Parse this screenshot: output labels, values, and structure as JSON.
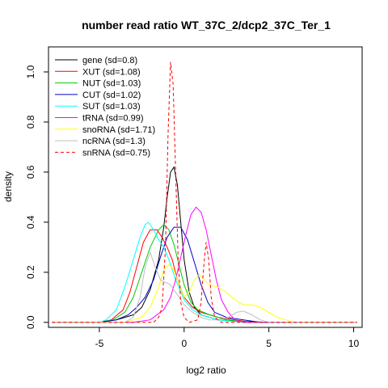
{
  "chart_data": {
    "type": "line",
    "title": "number read ratio WT_37C_2/dcp2_37C_Ter_1",
    "xlabel": "log2 ratio",
    "ylabel": "density",
    "xlim": [
      -8,
      10.5
    ],
    "ylim": [
      -0.02,
      1.1
    ],
    "x_ticks": [
      -5,
      0,
      5,
      10
    ],
    "x_tick_labels": [
      "-5",
      "0",
      "5",
      "10"
    ],
    "y_ticks": [
      0.0,
      0.2,
      0.4,
      0.6,
      0.8,
      1.0
    ],
    "y_tick_labels": [
      "0.0",
      "0.2",
      "0.4",
      "0.6",
      "0.8",
      "1.0"
    ],
    "grid": false,
    "legend_position": "top-left",
    "series": [
      {
        "name": "gene (sd=0.8)",
        "color": "#000000",
        "dash": false,
        "points": [
          [
            -7.8,
            0
          ],
          [
            -5,
            0
          ],
          [
            -4,
            0.01
          ],
          [
            -3,
            0.03
          ],
          [
            -2.5,
            0.06
          ],
          [
            -2,
            0.13
          ],
          [
            -1.5,
            0.25
          ],
          [
            -1.2,
            0.38
          ],
          [
            -1,
            0.5
          ],
          [
            -0.8,
            0.6
          ],
          [
            -0.6,
            0.62
          ],
          [
            -0.4,
            0.55
          ],
          [
            -0.2,
            0.4
          ],
          [
            0,
            0.25
          ],
          [
            0.3,
            0.12
          ],
          [
            0.6,
            0.06
          ],
          [
            1,
            0.03
          ],
          [
            1.5,
            0.02
          ],
          [
            2,
            0.01
          ],
          [
            3,
            0.005
          ],
          [
            5,
            0
          ],
          [
            10.2,
            0
          ]
        ]
      },
      {
        "name": "XUT (sd=1.08)",
        "color": "#ff0000",
        "dash": false,
        "points": [
          [
            -7.8,
            0
          ],
          [
            -5,
            0
          ],
          [
            -4.3,
            0.01
          ],
          [
            -3.6,
            0.05
          ],
          [
            -3.2,
            0.12
          ],
          [
            -2.8,
            0.22
          ],
          [
            -2.4,
            0.32
          ],
          [
            -2,
            0.37
          ],
          [
            -1.6,
            0.37
          ],
          [
            -1.3,
            0.34
          ],
          [
            -1,
            0.3
          ],
          [
            -0.7,
            0.25
          ],
          [
            -0.4,
            0.17
          ],
          [
            0,
            0.1
          ],
          [
            0.5,
            0.06
          ],
          [
            1,
            0.04
          ],
          [
            1.5,
            0.03
          ],
          [
            2,
            0.02
          ],
          [
            3,
            0.01
          ],
          [
            4,
            0
          ],
          [
            10.2,
            0
          ]
        ]
      },
      {
        "name": "NUT (sd=1.03)",
        "color": "#00cc00",
        "dash": false,
        "points": [
          [
            -7.8,
            0
          ],
          [
            -5,
            0
          ],
          [
            -4.2,
            0.01
          ],
          [
            -3.5,
            0.04
          ],
          [
            -3,
            0.1
          ],
          [
            -2.5,
            0.2
          ],
          [
            -2,
            0.3
          ],
          [
            -1.5,
            0.37
          ],
          [
            -1.2,
            0.39
          ],
          [
            -0.9,
            0.37
          ],
          [
            -0.6,
            0.31
          ],
          [
            -0.3,
            0.23
          ],
          [
            0,
            0.15
          ],
          [
            0.4,
            0.08
          ],
          [
            0.8,
            0.05
          ],
          [
            1.5,
            0.03
          ],
          [
            2.5,
            0.01
          ],
          [
            4,
            0
          ],
          [
            10.2,
            0
          ]
        ]
      },
      {
        "name": "CUT (sd=1.02)",
        "color": "#0000cc",
        "dash": false,
        "points": [
          [
            -7.8,
            0
          ],
          [
            -5,
            0
          ],
          [
            -4,
            0.01
          ],
          [
            -3.3,
            0.03
          ],
          [
            -2.8,
            0.06
          ],
          [
            -2.3,
            0.1
          ],
          [
            -1.8,
            0.17
          ],
          [
            -1.4,
            0.26
          ],
          [
            -1,
            0.34
          ],
          [
            -0.6,
            0.38
          ],
          [
            -0.2,
            0.38
          ],
          [
            0.2,
            0.33
          ],
          [
            0.6,
            0.24
          ],
          [
            1,
            0.15
          ],
          [
            1.4,
            0.08
          ],
          [
            1.8,
            0.04
          ],
          [
            2.5,
            0.02
          ],
          [
            3.5,
            0.01
          ],
          [
            4.5,
            0
          ],
          [
            10.2,
            0
          ]
        ]
      },
      {
        "name": "SUT (sd=1.03)",
        "color": "#00ffff",
        "dash": false,
        "points": [
          [
            -7.8,
            0
          ],
          [
            -5,
            0
          ],
          [
            -4.6,
            0.01
          ],
          [
            -4,
            0.05
          ],
          [
            -3.5,
            0.14
          ],
          [
            -3,
            0.25
          ],
          [
            -2.6,
            0.34
          ],
          [
            -2.3,
            0.39
          ],
          [
            -2.1,
            0.4
          ],
          [
            -1.8,
            0.37
          ],
          [
            -1.5,
            0.33
          ],
          [
            -1.2,
            0.3
          ],
          [
            -0.9,
            0.25
          ],
          [
            -0.5,
            0.17
          ],
          [
            0,
            0.09
          ],
          [
            0.5,
            0.05
          ],
          [
            1,
            0.03
          ],
          [
            2,
            0.01
          ],
          [
            3.5,
            0
          ],
          [
            10.2,
            0
          ]
        ]
      },
      {
        "name": "tRNA (sd=0.99)",
        "color": "#ff00ff",
        "dash": false,
        "points": [
          [
            -7.8,
            0
          ],
          [
            -3,
            0
          ],
          [
            -2,
            0.01
          ],
          [
            -1.2,
            0.05
          ],
          [
            -0.8,
            0.1
          ],
          [
            -0.5,
            0.17
          ],
          [
            -0.2,
            0.26
          ],
          [
            0.1,
            0.35
          ],
          [
            0.4,
            0.43
          ],
          [
            0.7,
            0.46
          ],
          [
            1,
            0.44
          ],
          [
            1.3,
            0.37
          ],
          [
            1.6,
            0.27
          ],
          [
            1.9,
            0.17
          ],
          [
            2.2,
            0.09
          ],
          [
            2.6,
            0.04
          ],
          [
            3,
            0.01
          ],
          [
            3.5,
            0
          ],
          [
            10.2,
            0
          ]
        ]
      },
      {
        "name": "snoRNA (sd=1.71)",
        "color": "#ffff00",
        "dash": false,
        "points": [
          [
            -7.8,
            0
          ],
          [
            -3.5,
            0
          ],
          [
            -2.5,
            0.02
          ],
          [
            -2,
            0.06
          ],
          [
            -1.5,
            0.14
          ],
          [
            -1.2,
            0.21
          ],
          [
            -0.9,
            0.23
          ],
          [
            -0.6,
            0.21
          ],
          [
            -0.3,
            0.15
          ],
          [
            0,
            0.1
          ],
          [
            0.3,
            0.12
          ],
          [
            0.6,
            0.17
          ],
          [
            0.9,
            0.19
          ],
          [
            1.2,
            0.17
          ],
          [
            1.5,
            0.15
          ],
          [
            2,
            0.14
          ],
          [
            2.5,
            0.12
          ],
          [
            3,
            0.09
          ],
          [
            3.5,
            0.07
          ],
          [
            4,
            0.07
          ],
          [
            4.5,
            0.06
          ],
          [
            5,
            0.04
          ],
          [
            5.5,
            0.02
          ],
          [
            6,
            0.01
          ],
          [
            6.5,
            0
          ],
          [
            10.2,
            0
          ]
        ]
      },
      {
        "name": "ncRNA (sd=1.3)",
        "color": "#bebebe",
        "dash": false,
        "points": [
          [
            -7.8,
            0
          ],
          [
            -3.5,
            0
          ],
          [
            -3,
            0.02
          ],
          [
            -2.6,
            0.1
          ],
          [
            -2.3,
            0.22
          ],
          [
            -2,
            0.28
          ],
          [
            -1.7,
            0.22
          ],
          [
            -1.4,
            0.17
          ],
          [
            -1.1,
            0.16
          ],
          [
            -0.8,
            0.15
          ],
          [
            -0.5,
            0.12
          ],
          [
            0,
            0.07
          ],
          [
            0.5,
            0.04
          ],
          [
            1,
            0.02
          ],
          [
            1.5,
            0.01
          ],
          [
            2,
            0.01
          ],
          [
            2.6,
            0.02
          ],
          [
            3.1,
            0.04
          ],
          [
            3.5,
            0.045
          ],
          [
            4,
            0.03
          ],
          [
            4.5,
            0.01
          ],
          [
            5,
            0
          ],
          [
            10.2,
            0
          ]
        ]
      },
      {
        "name": "snRNA (sd=0.75)",
        "color": "#ff0000",
        "dash": true,
        "points": [
          [
            -7.8,
            0
          ],
          [
            -1.8,
            0
          ],
          [
            -1.5,
            0.02
          ],
          [
            -1.3,
            0.06
          ],
          [
            -1.1,
            0.3
          ],
          [
            -0.95,
            0.75
          ],
          [
            -0.8,
            1.04
          ],
          [
            -0.65,
            0.95
          ],
          [
            -0.5,
            0.6
          ],
          [
            -0.35,
            0.25
          ],
          [
            -0.2,
            0.08
          ],
          [
            0,
            0.02
          ],
          [
            0.3,
            0
          ],
          [
            0.8,
            0.01
          ],
          [
            1,
            0.08
          ],
          [
            1.15,
            0.22
          ],
          [
            1.3,
            0.32
          ],
          [
            1.45,
            0.25
          ],
          [
            1.6,
            0.1
          ],
          [
            1.8,
            0.02
          ],
          [
            2.2,
            0
          ],
          [
            10.2,
            0
          ]
        ]
      }
    ]
  }
}
